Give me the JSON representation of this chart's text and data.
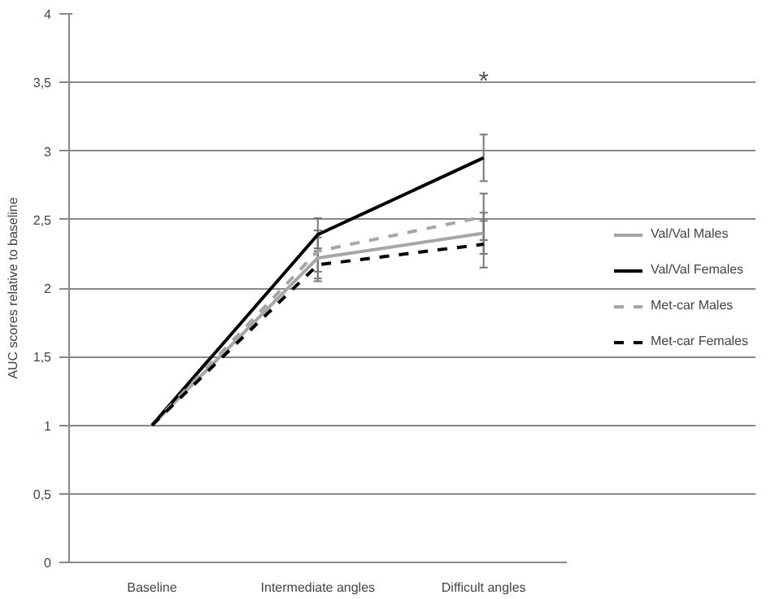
{
  "chart_data": {
    "type": "line",
    "ylabel": "AUC scores relative to baseline",
    "categories": [
      "Baseline",
      "Intermediate angles",
      "Difficult angles"
    ],
    "series": [
      {
        "name": "Val/Val Males",
        "color": "#a6a6a6",
        "line_style": "solid",
        "values": [
          1,
          2.22,
          2.4
        ],
        "errors": [
          null,
          0.15,
          0.15
        ]
      },
      {
        "name": "Val/Val Females",
        "color": "#000000",
        "line_style": "solid",
        "values": [
          1,
          2.39,
          2.95
        ],
        "errors": [
          null,
          0.12,
          0.17
        ]
      },
      {
        "name": "Met-car Males",
        "color": "#a6a6a6",
        "line_style": "dashed",
        "values": [
          1,
          2.27,
          2.52
        ],
        "errors": [
          null,
          0.15,
          0.17
        ]
      },
      {
        "name": "Met-car Females",
        "color": "#000000",
        "line_style": "dashed",
        "values": [
          1,
          2.17,
          2.32
        ],
        "errors": [
          null,
          0.12,
          0.17
        ]
      }
    ],
    "ylim": [
      0,
      4
    ],
    "yticks": [
      0,
      {
        "value": 0.5,
        "label": "0,5"
      },
      1,
      {
        "value": 1.5,
        "label": "1,5"
      },
      2,
      {
        "value": 2.5,
        "label": "2,5"
      },
      3,
      {
        "value": 3.5,
        "label": "3,5"
      },
      4
    ],
    "grid": "y",
    "legend": "right",
    "marker": "none",
    "annotations": [
      "*"
    ]
  }
}
